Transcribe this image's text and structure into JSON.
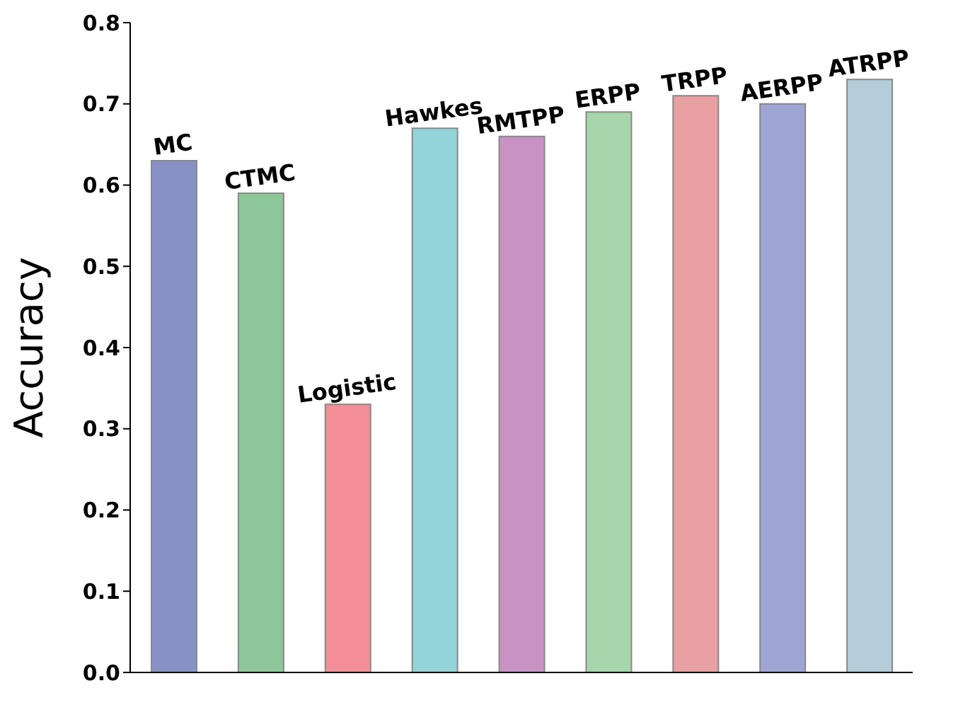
{
  "chart_data": {
    "type": "bar",
    "ylabel": "Accuracy",
    "categories": [
      "MC",
      "CTMC",
      "Logistic",
      "Hawkes",
      "RMTPP",
      "ERPP",
      "TRPP",
      "AERPP",
      "ATRPP"
    ],
    "values": [
      0.63,
      0.59,
      0.33,
      0.67,
      0.66,
      0.69,
      0.71,
      0.7,
      0.73
    ],
    "colors": [
      "#8891c6",
      "#8ec79a",
      "#f38f96",
      "#93d4d8",
      "#c693c4",
      "#a6d5aa",
      "#e8a0a3",
      "#9fa5d3",
      "#b3cdd9"
    ],
    "ylim": [
      0,
      0.8
    ],
    "yticks": [
      {
        "value": 0,
        "label": "0.0"
      },
      {
        "value": 0.1,
        "label": "0.1"
      },
      {
        "value": 0.2,
        "label": "0.2"
      },
      {
        "value": 0.3,
        "label": "0.3"
      },
      {
        "value": 0.4,
        "label": "0.4"
      },
      {
        "value": 0.5,
        "label": "0.5"
      },
      {
        "value": 0.6,
        "label": "0.6"
      },
      {
        "value": 0.7,
        "label": "0.7"
      },
      {
        "value": 0.8,
        "label": "0.8"
      }
    ],
    "grid": false,
    "tick_labels": "y"
  }
}
